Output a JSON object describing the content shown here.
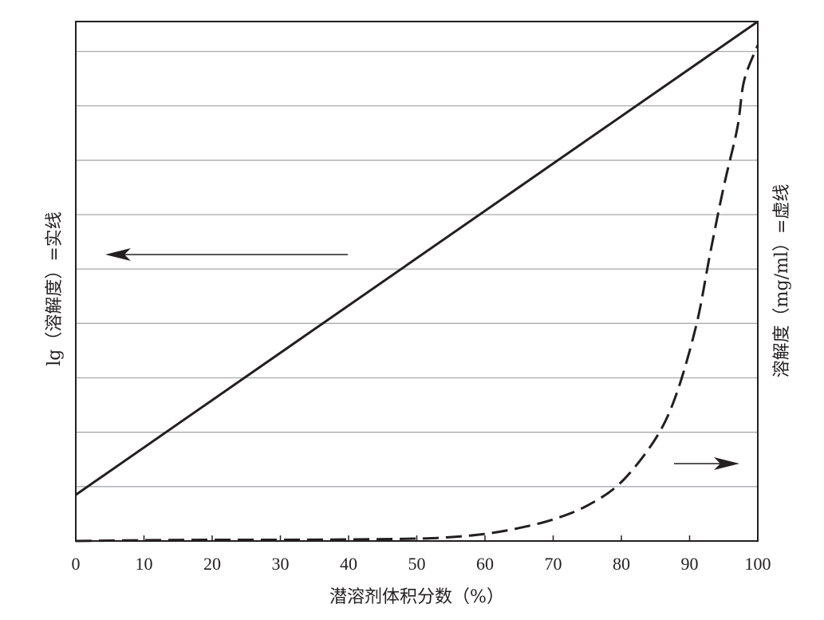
{
  "chart_data": {
    "type": "line",
    "title": "",
    "xlabel": "潜溶剂体积分数（%）",
    "ylabel_left": "lg（溶解度）=实线",
    "ylabel_right": "溶解度（mg/ml）=虚线",
    "xlim": [
      0,
      100
    ],
    "x_ticks": [
      0,
      10,
      20,
      30,
      40,
      50,
      60,
      70,
      80,
      90,
      100
    ],
    "grid": "horizontal",
    "series": [
      {
        "style": "solid",
        "axis": "left",
        "x": [
          0,
          100
        ],
        "y": [
          0.85,
          9.55
        ]
      },
      {
        "style": "dashed",
        "axis": "right",
        "x": [
          0,
          10,
          20,
          30,
          40,
          50,
          55,
          60,
          65,
          70,
          75,
          80,
          85,
          88,
          91,
          93,
          95,
          97,
          98,
          100
        ],
        "y": [
          0.0,
          0.02,
          0.03,
          0.03,
          0.04,
          0.06,
          0.1,
          0.18,
          0.33,
          0.55,
          0.9,
          1.5,
          2.6,
          3.7,
          5.5,
          7.3,
          9.0,
          10.5,
          11.7,
          12.6
        ]
      }
    ],
    "ylim_left": [
      0,
      9.55
    ],
    "ylim_right": [
      0,
      13.2
    ],
    "arrows": [
      {
        "direction": "left",
        "indicates": "left-axis"
      },
      {
        "direction": "right",
        "indicates": "right-axis"
      }
    ],
    "colors": {
      "line": "#231f20",
      "grid": "#a7a9ac"
    }
  }
}
